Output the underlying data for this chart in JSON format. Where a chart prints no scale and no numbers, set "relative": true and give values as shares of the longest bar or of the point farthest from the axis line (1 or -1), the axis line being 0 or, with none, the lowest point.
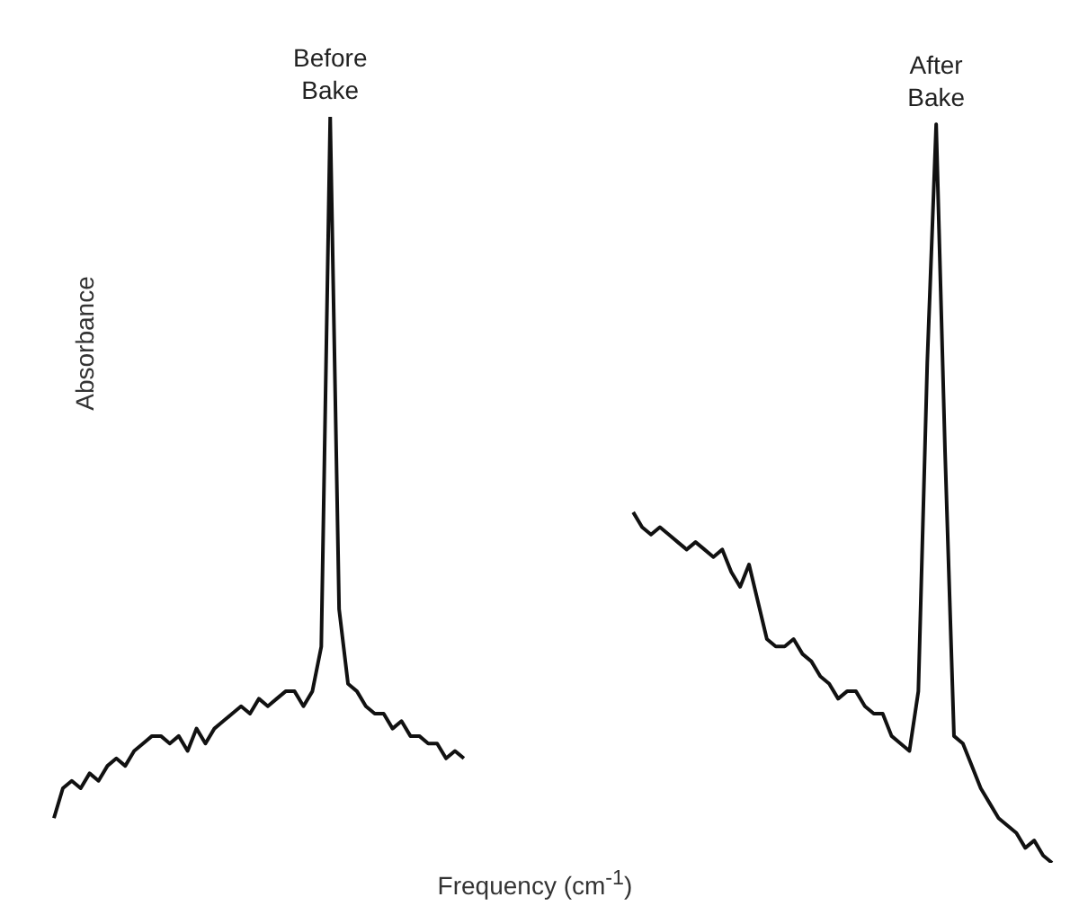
{
  "chart_data": {
    "type": "line",
    "relative": true,
    "ylabel": "Absorbance",
    "xlabel": "Frequency (cm$^{-1}$)",
    "grid": false,
    "legend": false,
    "categories": [
      null,
      null,
      null,
      null,
      null,
      null,
      null,
      null,
      null,
      null,
      null,
      null,
      null,
      null,
      null,
      null,
      null,
      null,
      null,
      null,
      null,
      null,
      null,
      null,
      null,
      null,
      null,
      null,
      null,
      null,
      null,
      null,
      null,
      null,
      null,
      null,
      null,
      null,
      null,
      null,
      null,
      null,
      null,
      null,
      null,
      null,
      null,
      null,
      null,
      null,
      null,
      null,
      null,
      null,
      null,
      null,
      null,
      null,
      null,
      null,
      null,
      null,
      null,
      null,
      null,
      null,
      null,
      null,
      null,
      null,
      null,
      null,
      null,
      null,
      null,
      null,
      null,
      null,
      null,
      null,
      null,
      null,
      null,
      null,
      null,
      null,
      null,
      null,
      null,
      null,
      null,
      null,
      null,
      null,
      null,
      null,
      null,
      null,
      null,
      null,
      null,
      null,
      null,
      null,
      null,
      null,
      null,
      null,
      null,
      null,
      null,
      null,
      null
    ],
    "series": [
      {
        "name": "Before Bake",
        "color": "#111111",
        "values": [
          0.06,
          0.1,
          0.11,
          0.1,
          0.12,
          0.11,
          0.13,
          0.14,
          0.13,
          0.15,
          0.16,
          0.17,
          0.17,
          0.16,
          0.17,
          0.15,
          0.18,
          0.16,
          0.18,
          0.19,
          0.2,
          0.21,
          0.2,
          0.22,
          0.21,
          0.22,
          0.23,
          0.23,
          0.21,
          0.23,
          0.29,
          1,
          0.34,
          0.24,
          0.23,
          0.21,
          0.2,
          0.2,
          0.18,
          0.19,
          0.17,
          0.17,
          0.16,
          0.16,
          0.14,
          0.15,
          0.14,
          null,
          null,
          null,
          null,
          null,
          null,
          null,
          null,
          null,
          null,
          null,
          null,
          null,
          null,
          null,
          null,
          null,
          null,
          null,
          null,
          null,
          null,
          null,
          null,
          null,
          null,
          null,
          null,
          null,
          null,
          null,
          null,
          null,
          null,
          null,
          null,
          null,
          null,
          null,
          null,
          null,
          null,
          null,
          null,
          null,
          null,
          null,
          null,
          null,
          null,
          null,
          null,
          null,
          null,
          null,
          null,
          null,
          null,
          null,
          null,
          null,
          null,
          null,
          null,
          null,
          null
        ]
      },
      {
        "name": "After Bake",
        "color": "#111111",
        "values": [
          null,
          null,
          null,
          null,
          null,
          null,
          null,
          null,
          null,
          null,
          null,
          null,
          null,
          null,
          null,
          null,
          null,
          null,
          null,
          null,
          null,
          null,
          null,
          null,
          null,
          null,
          null,
          null,
          null,
          null,
          null,
          null,
          null,
          null,
          null,
          null,
          null,
          null,
          null,
          null,
          null,
          null,
          null,
          null,
          null,
          null,
          null,
          null,
          null,
          null,
          null,
          null,
          null,
          null,
          null,
          null,
          null,
          null,
          null,
          null,
          null,
          null,
          null,
          null,
          null,
          0.47,
          0.45,
          0.44,
          0.45,
          0.44,
          0.43,
          0.42,
          0.43,
          0.42,
          0.41,
          0.42,
          0.39,
          0.37,
          0.4,
          0.35,
          0.3,
          0.29,
          0.29,
          0.3,
          0.28,
          0.27,
          0.25,
          0.24,
          0.22,
          0.23,
          0.23,
          0.21,
          0.2,
          0.2,
          0.17,
          0.16,
          0.15,
          0.23,
          0.67,
          0.99,
          0.55,
          0.17,
          0.16,
          0.13,
          0.1,
          0.08,
          0.06,
          0.05,
          0.04,
          0.02,
          0.03,
          0.01,
          0
        ]
      }
    ]
  }
}
